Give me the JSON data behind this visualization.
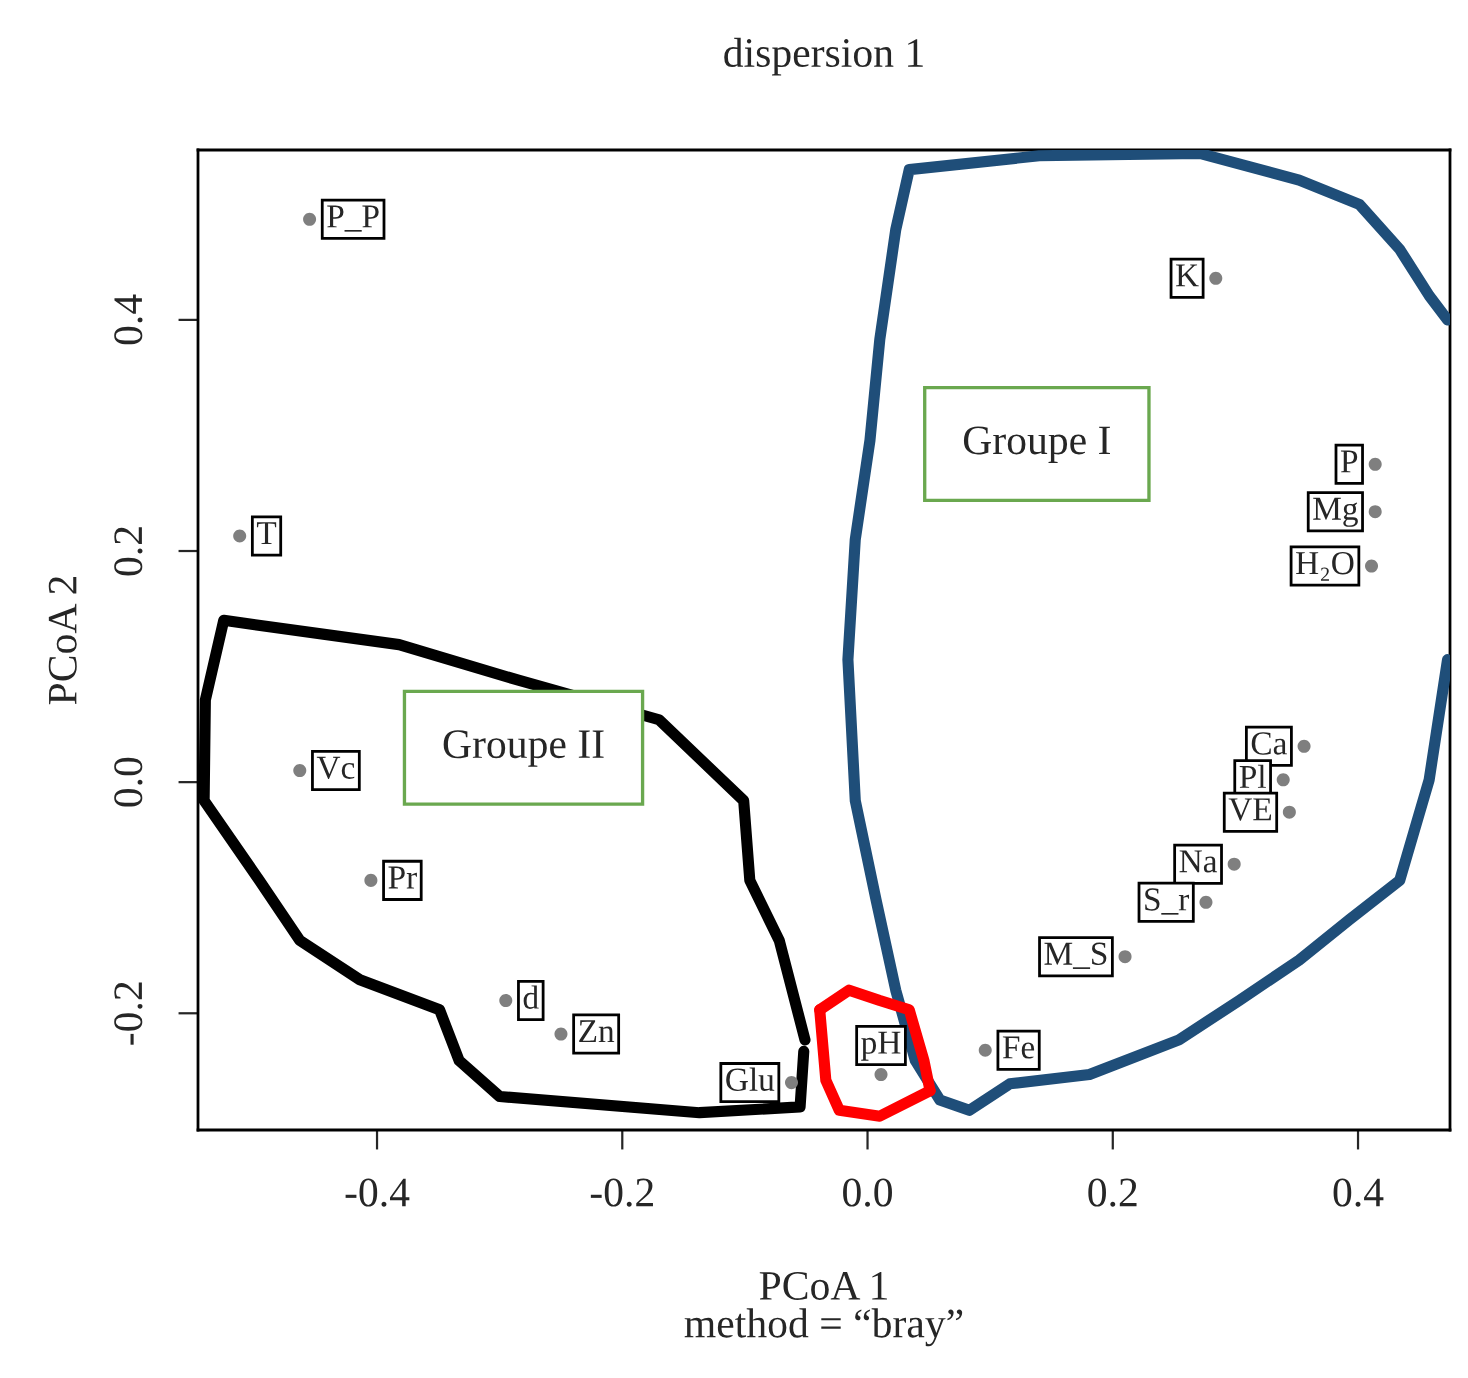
{
  "chart_data": {
    "type": "scatter",
    "title": "dispersion 1",
    "xlabel": "PCoA 1\nmethod = “bray”",
    "ylabel": "PCoA 2",
    "xlim": [
      -0.546,
      0.475
    ],
    "ylim": [
      -0.301,
      0.547
    ],
    "xticks": [
      {
        "value": -0.4,
        "label": "-0.4"
      },
      {
        "value": -0.2,
        "label": "-0.2"
      },
      {
        "value": 0,
        "label": "0.0"
      },
      {
        "value": 0.2,
        "label": "0.2"
      },
      {
        "value": 0.4,
        "label": "0.4"
      }
    ],
    "yticks": [
      {
        "value": -0.2,
        "label": "-0.2"
      },
      {
        "value": 0,
        "label": "0.0"
      },
      {
        "value": 0.2,
        "label": "0.2"
      },
      {
        "value": 0.4,
        "label": "0.4"
      }
    ],
    "grid": false,
    "legend": false,
    "series": [
      {
        "marker": "circle",
        "color": "#7f7f7f",
        "x": [
          -0.455,
          0.284,
          -0.512,
          0.414,
          0.414,
          0.411,
          -0.463,
          -0.405,
          -0.295,
          -0.25,
          -0.062,
          0.011,
          0.096,
          0.356,
          0.339,
          0.344,
          0.299,
          0.276,
          0.21
        ],
        "values": [
          0.487,
          0.436,
          0.213,
          0.275,
          0.234,
          0.187,
          0.01,
          -0.085,
          -0.189,
          -0.218,
          -0.26,
          -0.253,
          -0.232,
          0.031,
          0.002,
          -0.026,
          -0.071,
          -0.104,
          -0.151
        ],
        "value_labels": [
          "P_P",
          "K",
          "T",
          "P",
          "Mg",
          "H₂O",
          "Vc",
          "Pr",
          "d",
          "Zn",
          "Glu",
          "pH",
          "Fe",
          "Ca",
          "Pl",
          "VE",
          "Na",
          "S_r",
          "M_S"
        ]
      },
      {
        "type": "line",
        "color": "#1f4e79",
        "x": [
          0.473,
          0.458,
          0.434,
          0.401,
          0.352,
          0.271,
          0.14,
          0.034,
          0.023,
          0.01,
          0.002,
          -0.01,
          -0.016,
          -0.01,
          0.007,
          0.023,
          0.039,
          0.059,
          0.083,
          0.116,
          0.181,
          0.254,
          0.303,
          0.352,
          0.393,
          0.434,
          0.458,
          0.473
        ],
        "values": [
          0.4,
          0.421,
          0.461,
          0.5,
          0.521,
          0.544,
          0.542,
          0.53,
          0.478,
          0.383,
          0.296,
          0.21,
          0.106,
          -0.016,
          -0.102,
          -0.18,
          -0.241,
          -0.275,
          -0.284,
          -0.261,
          -0.253,
          -0.223,
          -0.189,
          -0.154,
          -0.119,
          -0.085,
          0.002,
          0.106
        ]
      },
      {
        "type": "line",
        "color": "#000000",
        "x": [
          -0.051,
          -0.072,
          -0.096,
          -0.101,
          -0.17,
          -0.284,
          -0.382,
          -0.525,
          -0.54,
          -0.541,
          -0.496,
          -0.463,
          -0.414,
          -0.349,
          -0.333,
          -0.3,
          -0.137,
          -0.055,
          -0.052
        ],
        "values": [
          -0.223,
          -0.137,
          -0.085,
          -0.016,
          0.054,
          0.088,
          0.119,
          0.14,
          0.071,
          -0.016,
          -0.085,
          -0.137,
          -0.171,
          -0.197,
          -0.241,
          -0.272,
          -0.286,
          -0.281,
          -0.233
        ]
      },
      {
        "type": "line",
        "color": "#ff0000",
        "x": [
          -0.039,
          -0.015,
          0.01,
          0.034,
          0.046,
          0.051
        ],
        "values": [
          -0.197,
          -0.18,
          -0.189,
          -0.197,
          -0.241,
          -0.267
        ]
      },
      {
        "type": "line",
        "color": "#ff0000",
        "x": [
          -0.039,
          -0.034,
          -0.023,
          0.01,
          0.051
        ],
        "values": [
          -0.197,
          -0.258,
          -0.284,
          -0.289,
          -0.267
        ]
      }
    ],
    "annotations": [
      "Groupe I",
      "Groupe II"
    ]
  }
}
